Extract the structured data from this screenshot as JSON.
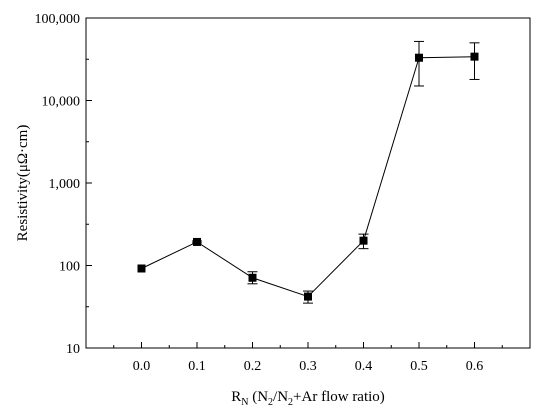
{
  "chart_data": {
    "type": "scatter",
    "x_label": {
      "prefix": "R",
      "prefix_sub": "N",
      "text_open": " (N",
      "sub1": "2",
      "text_mid": "/N",
      "sub2": "2",
      "text_close": "+Ar flow ratio)"
    },
    "ylabel": "Resistivity(μΩ·cm)",
    "xlim": [
      -0.1,
      0.7
    ],
    "ylim": [
      10,
      100000
    ],
    "yscale": "log",
    "x_ticks": [
      0.0,
      0.1,
      0.2,
      0.3,
      0.4,
      0.5,
      0.6
    ],
    "x_tick_labels": [
      "0.0",
      "0.1",
      "0.2",
      "0.3",
      "0.4",
      "0.5",
      "0.6"
    ],
    "y_ticks": [
      10,
      100,
      1000,
      10000,
      100000
    ],
    "y_tick_labels": [
      "10",
      "100",
      "1,000",
      "10,000",
      "100,000"
    ],
    "grid": false,
    "series": [
      {
        "marker": "square",
        "line": "solid",
        "color": "#000000",
        "x": [
          0.0,
          0.1,
          0.2,
          0.3,
          0.4,
          0.5,
          0.6
        ],
        "y": [
          92,
          193,
          71,
          42,
          200,
          33000,
          34000
        ],
        "error_low": [
          92,
          188,
          60,
          35,
          160,
          15000,
          18000
        ],
        "error_high": [
          92,
          198,
          84,
          49,
          240,
          52000,
          50000
        ]
      }
    ]
  }
}
